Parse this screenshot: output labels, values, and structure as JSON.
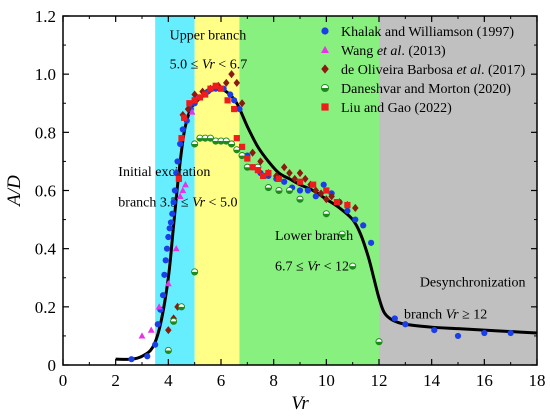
{
  "chart_data": {
    "type": "scatter",
    "xlabel": "Vr",
    "ylabel": "A/D",
    "xlim": [
      0,
      18
    ],
    "ylim": [
      0,
      1.2
    ],
    "x_ticks": [
      0,
      2,
      4,
      6,
      8,
      10,
      12,
      14,
      16,
      18
    ],
    "y_ticks": [
      0,
      0.2,
      0.4,
      0.6,
      0.8,
      1.0,
      1.2
    ],
    "x_tick_labels": [
      "0",
      "2",
      "4",
      "6",
      "8",
      "10",
      "12",
      "14",
      "16",
      "18"
    ],
    "y_tick_labels": [
      "0",
      "0.2",
      "0.4",
      "0.6",
      "0.8",
      "1.0",
      "1.2"
    ],
    "grid": false,
    "legend_position": "top-right",
    "regions": [
      {
        "x0": 3.5,
        "x1": 5.0,
        "color": "#66eeff",
        "lines": [
          [
            {
              "t": "Initial excitation"
            }
          ],
          [
            {
              "t": "branch 3.5 ≤ "
            },
            {
              "t": "Vr",
              "i": true
            },
            {
              "t": " < 5.0"
            }
          ]
        ],
        "label_at": [
          [
            2.1,
            0.65
          ],
          [
            2.1,
            0.545
          ]
        ]
      },
      {
        "x0": 5.0,
        "x1": 6.7,
        "color": "#ffff88",
        "lines": [
          [
            {
              "t": "Upper branch"
            }
          ],
          [
            {
              "t": "5.0 ≤ "
            },
            {
              "t": "Vr",
              "i": true
            },
            {
              "t": " < 6.7"
            }
          ]
        ],
        "label_at": [
          [
            4.05,
            1.12
          ],
          [
            4.05,
            1.02
          ]
        ]
      },
      {
        "x0": 6.7,
        "x1": 12.0,
        "color": "#88f07e",
        "lines": [
          [
            {
              "t": "Lower branch"
            }
          ],
          [
            {
              "t": "6.7 ≤ "
            },
            {
              "t": "Vr",
              "i": true
            },
            {
              "t": " < 12"
            }
          ]
        ],
        "label_at": [
          [
            8.05,
            0.43
          ],
          [
            8.05,
            0.325
          ]
        ]
      },
      {
        "x0": 12.0,
        "x1": 18.0,
        "color": "#c0c0c0",
        "lines": [
          [
            {
              "t": "Desynchronization"
            }
          ],
          [
            {
              "t": "branch   "
            },
            {
              "t": "Vr",
              "i": true
            },
            {
              "t": " ≥ 12"
            }
          ]
        ],
        "label_at": [
          [
            13.55,
            0.27
          ],
          [
            12.95,
            0.16
          ]
        ]
      }
    ],
    "series": [
      {
        "name": "Khalak and Williamson (1997)",
        "name_parts": [
          {
            "t": "Khalak and Williamson (1997)"
          }
        ],
        "marker": "circle",
        "color": "#1a3fe6",
        "points": [
          [
            2.6,
            0.02
          ],
          [
            3.2,
            0.03
          ],
          [
            3.5,
            0.07
          ],
          [
            3.6,
            0.14
          ],
          [
            3.7,
            0.19
          ],
          [
            3.8,
            0.24
          ],
          [
            3.85,
            0.31
          ],
          [
            3.9,
            0.36
          ],
          [
            3.95,
            0.4
          ],
          [
            4.0,
            0.44
          ],
          [
            4.05,
            0.47
          ],
          [
            4.1,
            0.49
          ],
          [
            4.15,
            0.52
          ],
          [
            4.2,
            0.56
          ],
          [
            4.25,
            0.6
          ],
          [
            4.3,
            0.66
          ],
          [
            4.35,
            0.7
          ],
          [
            4.45,
            0.76
          ],
          [
            4.55,
            0.81
          ],
          [
            4.7,
            0.84
          ],
          [
            4.85,
            0.88
          ],
          [
            5.0,
            0.9
          ],
          [
            5.2,
            0.92
          ],
          [
            5.5,
            0.94
          ],
          [
            5.8,
            0.95
          ],
          [
            6.1,
            0.95
          ],
          [
            6.35,
            0.93
          ],
          [
            6.5,
            0.91
          ],
          [
            6.7,
            0.88
          ],
          [
            7.0,
            0.72
          ],
          [
            7.2,
            0.68
          ],
          [
            7.5,
            0.66
          ],
          [
            7.8,
            0.65
          ],
          [
            8.1,
            0.64
          ],
          [
            8.4,
            0.63
          ],
          [
            8.7,
            0.61
          ],
          [
            9.0,
            0.6
          ],
          [
            9.3,
            0.6
          ],
          [
            9.6,
            0.58
          ],
          [
            9.9,
            0.62
          ],
          [
            10.2,
            0.59
          ],
          [
            10.5,
            0.56
          ],
          [
            10.8,
            0.53
          ],
          [
            11.1,
            0.5
          ],
          [
            11.4,
            0.48
          ],
          [
            11.7,
            0.42
          ],
          [
            12.6,
            0.16
          ],
          [
            13.0,
            0.14
          ],
          [
            14.1,
            0.12
          ],
          [
            15.0,
            0.1
          ],
          [
            16.0,
            0.11
          ],
          [
            17.0,
            0.11
          ]
        ]
      },
      {
        "name": "Wang et al. (2013)",
        "name_parts": [
          {
            "t": "Wang "
          },
          {
            "t": "et al",
            "i": true
          },
          {
            "t": ". (2013)"
          }
        ],
        "marker": "triangle",
        "color": "#e832e8",
        "points": [
          [
            3.0,
            0.1
          ],
          [
            3.35,
            0.12
          ],
          [
            3.65,
            0.2
          ],
          [
            4.0,
            0.28
          ],
          [
            4.3,
            0.4
          ],
          [
            4.45,
            0.58
          ],
          [
            4.55,
            0.6
          ],
          [
            4.65,
            0.62
          ],
          [
            4.9,
            0.87
          ],
          [
            5.1,
            0.92
          ]
        ]
      },
      {
        "name": "de Oliveira Barbosa et al. (2017)",
        "name_parts": [
          {
            "t": "de Oliveira Barbosa "
          },
          {
            "t": "et al",
            "i": true
          },
          {
            "t": ". (2017)"
          }
        ],
        "marker": "diamond",
        "color": "#8b1a10",
        "points": [
          [
            4.0,
            0.12
          ],
          [
            4.2,
            0.16
          ],
          [
            4.35,
            0.2
          ],
          [
            4.4,
            0.65
          ],
          [
            4.55,
            0.86
          ],
          [
            4.75,
            0.88
          ],
          [
            5.0,
            0.93
          ],
          [
            5.3,
            0.94
          ],
          [
            5.6,
            0.95
          ],
          [
            5.9,
            0.96
          ],
          [
            6.2,
            0.97
          ],
          [
            6.4,
            1.0
          ],
          [
            6.6,
            0.97
          ],
          [
            6.8,
            0.9
          ],
          [
            7.2,
            0.73
          ],
          [
            7.5,
            0.7
          ],
          [
            7.8,
            0.66
          ],
          [
            8.1,
            0.65
          ],
          [
            8.4,
            0.68
          ],
          [
            8.6,
            0.66
          ],
          [
            8.8,
            0.64
          ],
          [
            9.0,
            0.66
          ],
          [
            9.2,
            0.64
          ],
          [
            9.4,
            0.62
          ],
          [
            9.6,
            0.6
          ],
          [
            9.8,
            0.59
          ],
          [
            10.0,
            0.57
          ],
          [
            10.2,
            0.58
          ],
          [
            10.5,
            0.56
          ],
          [
            10.8,
            0.55
          ],
          [
            11.1,
            0.54
          ]
        ]
      },
      {
        "name": "Daneshvar and Morton (2020)",
        "name_parts": [
          {
            "t": "Daneshvar and Morton (2020)"
          }
        ],
        "marker": "halfcircle",
        "color": "#1e8a1e",
        "points": [
          [
            4.0,
            0.05
          ],
          [
            4.2,
            0.15
          ],
          [
            4.5,
            0.2
          ],
          [
            5.0,
            0.32
          ],
          [
            5.0,
            0.76
          ],
          [
            5.2,
            0.78
          ],
          [
            5.4,
            0.78
          ],
          [
            5.6,
            0.78
          ],
          [
            5.8,
            0.77
          ],
          [
            6.0,
            0.77
          ],
          [
            6.2,
            0.77
          ],
          [
            6.4,
            0.76
          ],
          [
            6.6,
            0.74
          ],
          [
            6.8,
            0.72
          ],
          [
            7.0,
            0.68
          ],
          [
            7.4,
            0.68
          ],
          [
            7.8,
            0.61
          ],
          [
            8.2,
            0.6
          ],
          [
            8.6,
            0.6
          ],
          [
            9.0,
            0.57
          ],
          [
            10.0,
            0.52
          ],
          [
            10.6,
            0.45
          ],
          [
            11.0,
            0.34
          ],
          [
            12.0,
            0.08
          ]
        ]
      },
      {
        "name": "Liu and Gao (2022)",
        "name_parts": [
          {
            "t": "Liu and Gao (2022)"
          }
        ],
        "marker": "square",
        "color": "#ee1c1c",
        "points": [
          [
            4.4,
            0.64
          ],
          [
            4.5,
            0.78
          ],
          [
            4.6,
            0.85
          ],
          [
            4.8,
            0.9
          ],
          [
            5.0,
            0.91
          ],
          [
            5.2,
            0.92
          ],
          [
            5.4,
            0.93
          ],
          [
            5.6,
            0.95
          ],
          [
            5.8,
            0.96
          ],
          [
            6.0,
            0.95
          ],
          [
            6.25,
            0.91
          ],
          [
            6.5,
            0.88
          ],
          [
            6.6,
            0.78
          ],
          [
            6.8,
            0.75
          ],
          [
            7.0,
            0.71
          ],
          [
            7.2,
            0.68
          ],
          [
            7.4,
            0.67
          ],
          [
            7.6,
            0.65
          ],
          [
            7.8,
            0.66
          ],
          [
            8.2,
            0.64
          ],
          [
            9.0,
            0.63
          ],
          [
            9.5,
            0.62
          ],
          [
            10.0,
            0.6
          ],
          [
            10.4,
            0.56
          ],
          [
            10.8,
            0.55
          ]
        ]
      }
    ],
    "curve": {
      "color": "#000000",
      "points": [
        [
          2.0,
          0.02
        ],
        [
          2.6,
          0.02
        ],
        [
          3.0,
          0.03
        ],
        [
          3.4,
          0.06
        ],
        [
          3.7,
          0.14
        ],
        [
          4.0,
          0.3
        ],
        [
          4.2,
          0.48
        ],
        [
          4.4,
          0.66
        ],
        [
          4.6,
          0.8
        ],
        [
          4.8,
          0.87
        ],
        [
          5.0,
          0.9
        ],
        [
          5.4,
          0.93
        ],
        [
          5.8,
          0.95
        ],
        [
          6.2,
          0.94
        ],
        [
          6.6,
          0.9
        ],
        [
          7.0,
          0.82
        ],
        [
          7.4,
          0.75
        ],
        [
          7.8,
          0.7
        ],
        [
          8.2,
          0.66
        ],
        [
          8.6,
          0.64
        ],
        [
          9.0,
          0.62
        ],
        [
          9.5,
          0.6
        ],
        [
          10.0,
          0.57
        ],
        [
          10.5,
          0.54
        ],
        [
          11.0,
          0.5
        ],
        [
          11.3,
          0.45
        ],
        [
          11.6,
          0.37
        ],
        [
          11.8,
          0.3
        ],
        [
          12.0,
          0.23
        ],
        [
          12.2,
          0.18
        ],
        [
          12.5,
          0.155
        ],
        [
          13.0,
          0.14
        ],
        [
          14.0,
          0.13
        ],
        [
          15.0,
          0.125
        ],
        [
          16.0,
          0.12
        ],
        [
          17.0,
          0.115
        ],
        [
          18.0,
          0.11
        ]
      ]
    }
  }
}
